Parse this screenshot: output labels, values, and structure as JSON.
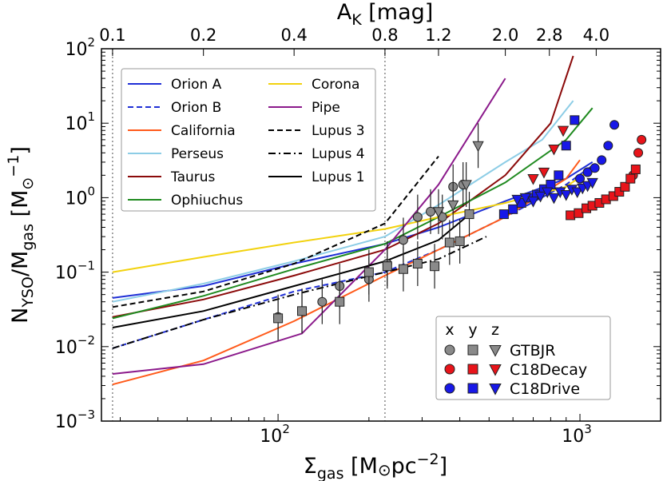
{
  "chart_data": {
    "type": "line",
    "title": "",
    "xlabel": "Σ_gas [M⊙ pc^-2]",
    "ylabel": "N_YSO/M_gas [M⊙^-1]",
    "xlabel_parts": {
      "main": "Σ",
      "sub": "gas",
      "rest": " [M",
      "sun": "⊙",
      "unit": "pc",
      "sup": "−2",
      "close": "]"
    },
    "ylabel_parts": {
      "main": "N",
      "sub1": "YSO",
      "mid": "/M",
      "sub2": "gas",
      "open": " [M",
      "sun": "⊙",
      "sup": "−1",
      "close": "]"
    },
    "top_xlabel_parts": {
      "main": "A",
      "sub": "K",
      "rest": " [mag]"
    },
    "xscale": "log",
    "yscale": "log",
    "xlim": [
      26,
      1850
    ],
    "ylim": [
      0.001,
      100
    ],
    "x_ticks": [
      {
        "value": 100,
        "base": "10",
        "exp": "2"
      },
      {
        "value": 1000,
        "base": "10",
        "exp": "3"
      }
    ],
    "y_ticks": [
      {
        "value": 0.001,
        "base": "10",
        "exp": "−3"
      },
      {
        "value": 0.01,
        "base": "10",
        "exp": "−2"
      },
      {
        "value": 0.1,
        "base": "10",
        "exp": "−1"
      },
      {
        "value": 1,
        "base": "10",
        "exp": "0"
      },
      {
        "value": 10,
        "base": "10",
        "exp": "1"
      },
      {
        "value": 100,
        "base": "10",
        "exp": "2"
      }
    ],
    "top_axis_ticks": [
      {
        "label": "0.1",
        "sigma": 28.3
      },
      {
        "label": "0.2",
        "sigma": 56.6
      },
      {
        "label": "0.4",
        "sigma": 113
      },
      {
        "label": "0.8",
        "sigma": 226
      },
      {
        "label": "1.2",
        "sigma": 340
      },
      {
        "label": "2.0",
        "sigma": 566
      },
      {
        "label": "2.8",
        "sigma": 792
      },
      {
        "label": "4.0",
        "sigma": 1132
      }
    ],
    "vlines": [
      28.3,
      226
    ],
    "series": [
      {
        "name": "Orion A",
        "color": "#1f2fd6",
        "dash": "solid",
        "x": [
          28.3,
          56.6,
          113,
          226,
          340,
          566,
          900,
          1100
        ],
        "y": [
          0.045,
          0.065,
          0.13,
          0.24,
          0.4,
          0.9,
          1.8,
          3.0
        ]
      },
      {
        "name": "Orion B",
        "color": "#1f2fd6",
        "dash": "dashed",
        "x": [
          28.3,
          56.6,
          113,
          226,
          340,
          566,
          900,
          1100
        ],
        "y": [
          0.0095,
          0.023,
          0.055,
          0.1,
          0.2,
          0.55,
          1.5,
          2.7
        ]
      },
      {
        "name": "California",
        "color": "#ff5a1a",
        "dash": "solid",
        "x": [
          28.3,
          56.6,
          113,
          226,
          340,
          566,
          900,
          1000
        ],
        "y": [
          0.0031,
          0.0065,
          0.022,
          0.09,
          0.2,
          0.55,
          1.8,
          3.2
        ]
      },
      {
        "name": "Perseus",
        "color": "#8dcde6",
        "dash": "solid",
        "x": [
          28.3,
          56.6,
          113,
          226,
          340,
          566,
          750,
          950
        ],
        "y": [
          0.04,
          0.07,
          0.14,
          0.3,
          0.8,
          3.0,
          6.0,
          20
        ]
      },
      {
        "name": "Taurus",
        "color": "#8b0a0a",
        "dash": "solid",
        "x": [
          28.3,
          56.6,
          113,
          226,
          340,
          566,
          800,
          950
        ],
        "y": [
          0.025,
          0.043,
          0.09,
          0.2,
          0.45,
          2.0,
          10,
          80
        ]
      },
      {
        "name": "Ophiuchus",
        "color": "#1f8a1f",
        "dash": "solid",
        "x": [
          28.3,
          56.6,
          113,
          226,
          340,
          566,
          900,
          1100
        ],
        "y": [
          0.024,
          0.048,
          0.11,
          0.24,
          0.55,
          1.6,
          6.0,
          16
        ]
      },
      {
        "name": "Corona",
        "color": "#f2d20f",
        "dash": "solid",
        "x": [
          28.3,
          56.6,
          113,
          226,
          340,
          566,
          900,
          1100
        ],
        "y": [
          0.1,
          0.16,
          0.25,
          0.38,
          0.55,
          0.85,
          1.4,
          2.5
        ]
      },
      {
        "name": "Pipe",
        "color": "#8b1a8b",
        "dash": "solid",
        "x": [
          28.3,
          56.6,
          120,
          226,
          340,
          566
        ],
        "y": [
          0.0043,
          0.0058,
          0.015,
          0.2,
          1.5,
          40
        ]
      },
      {
        "name": "Lupus 3",
        "color": "#000000",
        "dash": "dashed",
        "x": [
          28.3,
          56.6,
          113,
          226,
          340
        ],
        "y": [
          0.034,
          0.055,
          0.13,
          0.45,
          3.6
        ]
      },
      {
        "name": "Lupus 4",
        "color": "#000000",
        "dash": "dashdot",
        "x": [
          28.3,
          56.6,
          113,
          226,
          340,
          490
        ],
        "y": [
          0.0095,
          0.023,
          0.05,
          0.1,
          0.15,
          0.3
        ]
      },
      {
        "name": "Lupus 1",
        "color": "#000000",
        "dash": "solid",
        "x": [
          28.3,
          56.6,
          113,
          226,
          340,
          420
        ],
        "y": [
          0.018,
          0.03,
          0.065,
          0.14,
          0.27,
          0.55
        ]
      }
    ],
    "scatter": [
      {
        "model": "GTBJR",
        "marker": "circle",
        "color": "#8a8a8a",
        "x": [
          100,
          120,
          140,
          160,
          200,
          230,
          260,
          290,
          320,
          350,
          380,
          410
        ],
        "y": [
          0.025,
          0.03,
          0.04,
          0.065,
          0.08,
          0.13,
          0.27,
          0.55,
          0.65,
          0.55,
          1.4,
          1.5
        ]
      },
      {
        "model": "GTBJR",
        "marker": "square",
        "color": "#8a8a8a",
        "x": [
          100,
          120,
          160,
          200,
          230,
          260,
          290,
          330,
          370,
          400,
          430
        ],
        "y": [
          0.024,
          0.03,
          0.04,
          0.1,
          0.12,
          0.11,
          0.13,
          0.12,
          0.25,
          0.26,
          0.6
        ]
      },
      {
        "model": "GTBJR",
        "marker": "triangle",
        "color": "#8a8a8a",
        "x": [
          340,
          380,
          420,
          460
        ],
        "y": [
          0.65,
          0.8,
          1.5,
          5.0
        ]
      },
      {
        "model": "C18Decay",
        "marker": "circle",
        "color": "#e8141a",
        "x": [
          1500,
          1560,
          1600
        ],
        "y": [
          2.0,
          4.0,
          6.0
        ]
      },
      {
        "model": "C18Decay",
        "marker": "square",
        "color": "#e8141a",
        "x": [
          930,
          990,
          1050,
          1100,
          1160,
          1220,
          1290,
          1350,
          1410,
          1470,
          1530
        ],
        "y": [
          0.58,
          0.62,
          0.72,
          0.78,
          0.85,
          0.95,
          1.05,
          1.2,
          1.4,
          1.8,
          2.4
        ]
      },
      {
        "model": "C18Decay",
        "marker": "triangle",
        "color": "#e8141a",
        "x": [
          700,
          760,
          820,
          880
        ],
        "y": [
          1.8,
          2.2,
          4.5,
          8.0
        ]
      },
      {
        "model": "C18Drive",
        "marker": "circle",
        "color": "#1818e8",
        "x": [
          1000,
          1060,
          1120,
          1180,
          1240,
          1300
        ],
        "y": [
          1.8,
          2.2,
          2.5,
          3.2,
          5.0,
          9.5
        ]
      },
      {
        "model": "C18Drive",
        "marker": "square",
        "color": "#1818e8",
        "x": [
          560,
          600,
          640,
          680,
          720,
          760,
          800,
          850,
          900,
          960
        ],
        "y": [
          0.6,
          0.7,
          0.85,
          1.0,
          1.1,
          1.3,
          1.5,
          2.0,
          5.0,
          11.0
        ]
      },
      {
        "model": "C18Drive",
        "marker": "triangle",
        "color": "#1818e8",
        "x": [
          620,
          660,
          700,
          740,
          780,
          820,
          860,
          900,
          940,
          980,
          1020,
          1060,
          1100
        ],
        "y": [
          0.95,
          1.0,
          0.9,
          1.05,
          1.2,
          1.0,
          1.2,
          1.1,
          1.3,
          1.2,
          1.35,
          1.45,
          1.6
        ]
      }
    ],
    "legend_lines_position": "top-left",
    "legend_models_position": "bottom-right",
    "legend_models": {
      "headers": [
        "x",
        "y",
        "z"
      ],
      "rows": [
        {
          "label": "GTBJR",
          "color": "#8a8a8a"
        },
        {
          "label": "C18Decay",
          "color": "#e8141a"
        },
        {
          "label": "C18Drive",
          "color": "#1818e8"
        }
      ]
    }
  }
}
